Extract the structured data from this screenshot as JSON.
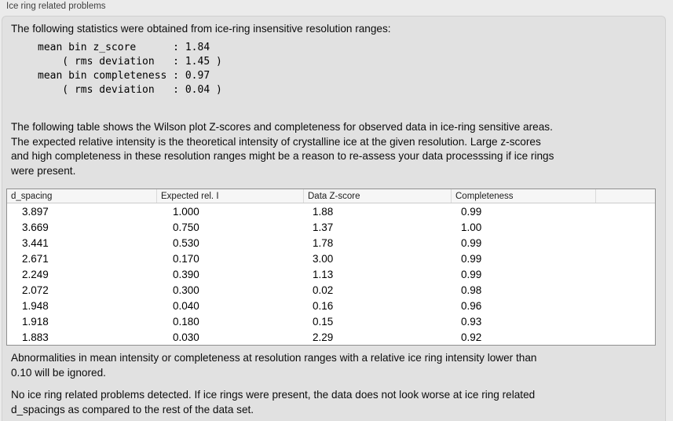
{
  "window": {
    "title": "Ice ring related problems"
  },
  "panel": {
    "intro": "The following statistics were obtained from ice-ring insensitive resolution ranges:",
    "stats_block": "mean bin z_score      : 1.84\n    ( rms deviation   : 1.45 )\nmean bin completeness : 0.97\n    ( rms deviation   : 0.04 )",
    "table_description": "The following table shows the Wilson plot Z-scores and completeness for observed data in ice-ring sensitive areas.\nThe expected relative intensity is the theoretical intensity of crystalline ice at the given resolution. Large z-scores\nand high completeness in these resolution ranges might be a reason to re-assess your data processsing if ice rings\nwere present.",
    "table": {
      "columns": [
        "d_spacing",
        "Expected rel. I",
        "Data Z-score",
        "Completeness",
        ""
      ],
      "rows": [
        [
          "3.897",
          "1.000",
          "1.88",
          "0.99"
        ],
        [
          "3.669",
          "0.750",
          "1.37",
          "1.00"
        ],
        [
          "3.441",
          "0.530",
          "1.78",
          "0.99"
        ],
        [
          "2.671",
          "0.170",
          "3.00",
          "0.99"
        ],
        [
          "2.249",
          "0.390",
          "1.13",
          "0.99"
        ],
        [
          "2.072",
          "0.300",
          "0.02",
          "0.98"
        ],
        [
          "1.948",
          "0.040",
          "0.16",
          "0.96"
        ],
        [
          "1.918",
          "0.180",
          "0.15",
          "0.93"
        ],
        [
          "1.883",
          "0.030",
          "2.29",
          "0.92"
        ]
      ]
    },
    "note_ignore": "Abnormalities in mean intensity or completeness at resolution ranges with a relative ice ring intensity lower than\n0.10 will be ignored.",
    "conclusion": "No ice ring related problems detected. If ice rings were present, the data does not look worse at ice ring related\nd_spacings as compared to the rest of the data set.",
    "colors": {
      "outer_background": "#ebebeb",
      "panel_background": "#e1e1e1",
      "table_header_background": "#f6f6f6",
      "table_border": "#8f8f8f"
    }
  }
}
